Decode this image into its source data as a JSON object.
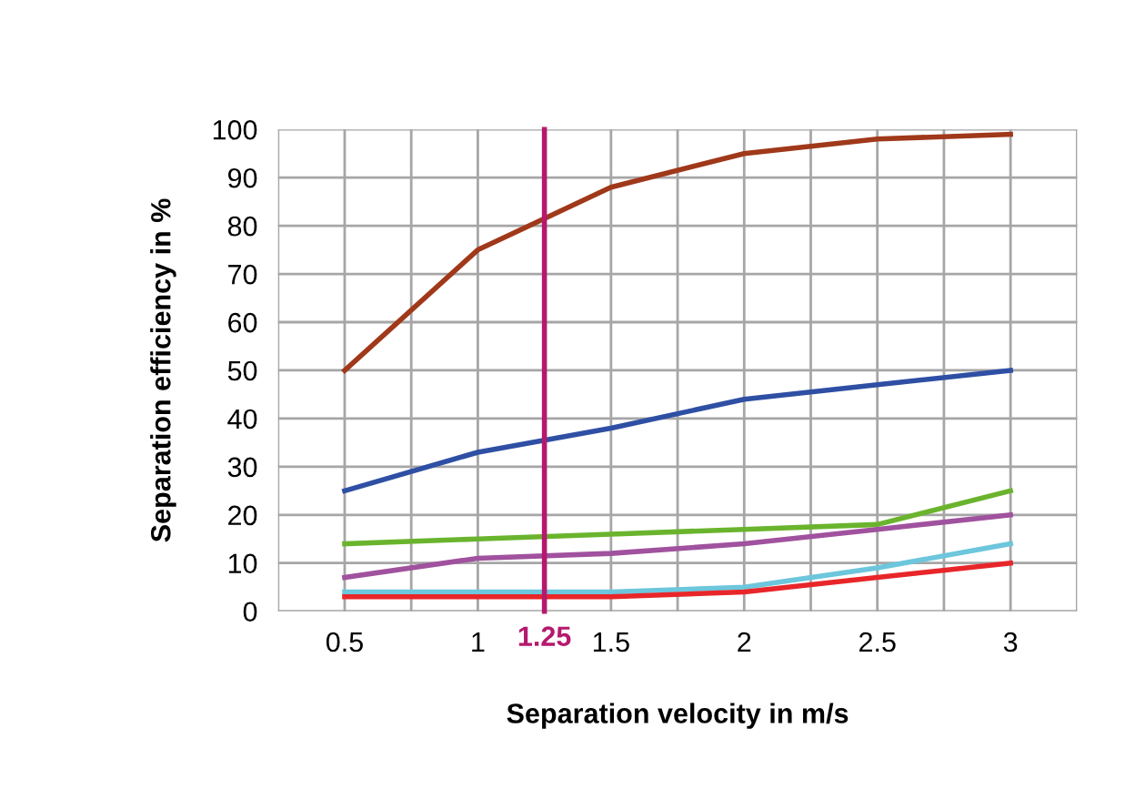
{
  "chart_data": {
    "type": "line",
    "xlabel": "Separation velocity in m/s",
    "ylabel": "Separation efficiency in %",
    "x": [
      0.5,
      1,
      1.5,
      2,
      2.5,
      3
    ],
    "series": [
      {
        "color": "#a0381a",
        "values": [
          50,
          75,
          88,
          95,
          98,
          99
        ]
      },
      {
        "color": "#2e4fa3",
        "values": [
          25,
          33,
          38,
          44,
          47,
          50
        ]
      },
      {
        "color": "#6ab42d",
        "values": [
          14,
          15,
          16,
          17,
          18,
          25
        ]
      },
      {
        "color": "#a0529e",
        "values": [
          7,
          11,
          12,
          14,
          17,
          20
        ]
      },
      {
        "color": "#6cc6dc",
        "values": [
          4,
          4,
          4,
          5,
          9,
          14
        ]
      },
      {
        "color": "#e8262a",
        "values": [
          3,
          3,
          3,
          4,
          7,
          10
        ]
      }
    ],
    "xlim": [
      0.25,
      3.25
    ],
    "xticks": [
      {
        "value": 0.25,
        "label": null
      },
      0.5,
      {
        "value": 0.75,
        "label": null
      },
      1,
      {
        "value": 1.5,
        "label": "1.5"
      },
      {
        "value": 1.75,
        "label": null
      },
      2,
      {
        "value": 2.25,
        "label": null
      },
      2.5,
      {
        "value": 2.75,
        "label": null
      },
      3,
      {
        "value": 3.25,
        "label": null
      }
    ],
    "ylim": [
      0,
      100
    ],
    "yticks": [
      0,
      10,
      20,
      30,
      40,
      50,
      60,
      70,
      80,
      90,
      100
    ],
    "ref_lines": [
      {
        "axis": "x",
        "value": 1.25,
        "label": "1.25",
        "color": "#b5196e"
      }
    ],
    "grid": true,
    "marker": "none",
    "line_style": "solid"
  }
}
